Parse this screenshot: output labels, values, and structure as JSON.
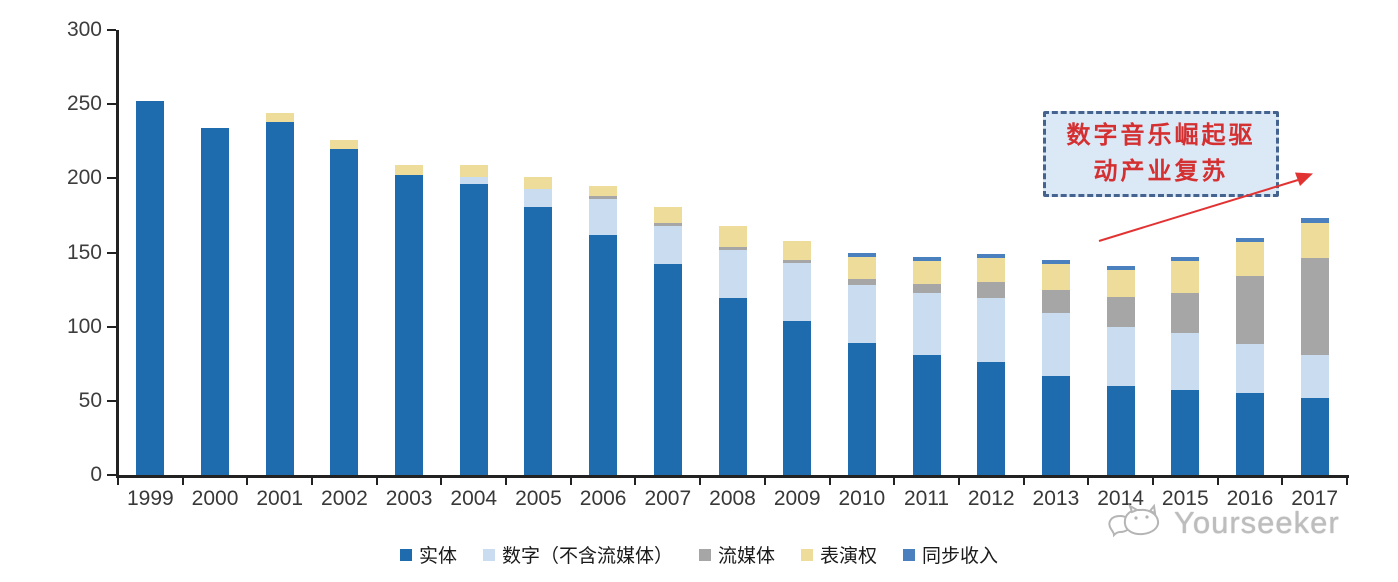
{
  "chart_data": {
    "type": "bar",
    "stacked": true,
    "title": "",
    "xlabel": "",
    "ylabel": "",
    "categories": [
      "1999",
      "2000",
      "2001",
      "2002",
      "2003",
      "2004",
      "2005",
      "2006",
      "2007",
      "2008",
      "2009",
      "2010",
      "2011",
      "2012",
      "2013",
      "2014",
      "2015",
      "2016",
      "2017"
    ],
    "series": [
      {
        "name": "实体",
        "color": "#1e6bae",
        "values": [
          252,
          234,
          238,
          220,
          202,
          196,
          181,
          162,
          142,
          119,
          104,
          89,
          81,
          76,
          67,
          60,
          57,
          55,
          52
        ]
      },
      {
        "name": "数字（不含流媒体）",
        "color": "#c9dcf0",
        "values": [
          0,
          0,
          0,
          0,
          0,
          5,
          12,
          24,
          26,
          33,
          39,
          39,
          42,
          43,
          42,
          40,
          39,
          33,
          29
        ]
      },
      {
        "name": "流媒体",
        "color": "#a6a6a6",
        "values": [
          0,
          0,
          0,
          0,
          0,
          0,
          0,
          2,
          2,
          2,
          2,
          4,
          6,
          11,
          16,
          20,
          27,
          46,
          65
        ]
      },
      {
        "name": "表演权",
        "color": "#eedc9a",
        "values": [
          0,
          0,
          6,
          6,
          7,
          8,
          8,
          7,
          11,
          14,
          13,
          15,
          15,
          16,
          17,
          18,
          21,
          23,
          24
        ]
      },
      {
        "name": "同步收入",
        "color": "#4b80be",
        "values": [
          0,
          0,
          0,
          0,
          0,
          0,
          0,
          0,
          0,
          0,
          0,
          3,
          3,
          3,
          3,
          3,
          3,
          3,
          3
        ]
      }
    ],
    "ylim": [
      0,
      300
    ],
    "yticks": [
      0,
      50,
      100,
      150,
      200,
      250,
      300
    ],
    "grid": false,
    "legend_position": "bottom"
  },
  "annotation": {
    "lines": [
      "数字音乐崛起驱",
      "动产业复苏"
    ],
    "text_color": "#d43031",
    "box_border_color": "#45638f",
    "box_fill_color": "#dbe8f6",
    "arrow_color": "#e23333"
  },
  "watermark": {
    "text": "Yourseeker",
    "color": "#bdbdbd",
    "icon": "cat-chat-logo-icon"
  },
  "colors": {
    "axis": "#222222",
    "tick_label": "#3d3d3d",
    "background": "#ffffff"
  }
}
